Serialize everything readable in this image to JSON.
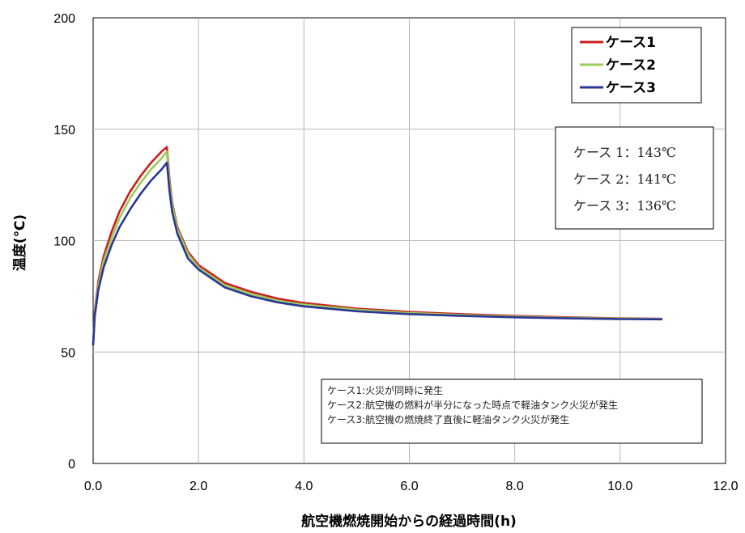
{
  "chart_data": {
    "type": "line",
    "xlabel": "航空機燃焼開始からの経過時間(h)",
    "ylabel": "温度(℃)",
    "xlim": [
      0,
      12
    ],
    "ylim": [
      0,
      200
    ],
    "x_ticks": [
      "0.0",
      "2.0",
      "4.0",
      "6.0",
      "8.0",
      "10.0",
      "12.0"
    ],
    "y_ticks": [
      "0",
      "50",
      "100",
      "150",
      "200"
    ],
    "grid": true,
    "legend_position": "top-right",
    "series": [
      {
        "name": "ケース1",
        "color": "#cc1f1f",
        "points": [
          [
            0.0,
            53
          ],
          [
            0.03,
            68
          ],
          [
            0.1,
            82
          ],
          [
            0.2,
            93
          ],
          [
            0.35,
            104
          ],
          [
            0.5,
            113
          ],
          [
            0.7,
            122
          ],
          [
            0.9,
            129
          ],
          [
            1.1,
            135
          ],
          [
            1.3,
            140
          ],
          [
            1.4,
            142
          ],
          [
            1.42,
            136
          ],
          [
            1.45,
            127
          ],
          [
            1.5,
            117
          ],
          [
            1.6,
            106
          ],
          [
            1.8,
            95
          ],
          [
            2.0,
            89
          ],
          [
            2.5,
            81
          ],
          [
            3.0,
            77
          ],
          [
            3.5,
            74
          ],
          [
            4.0,
            72
          ],
          [
            5.0,
            69.5
          ],
          [
            6.0,
            68
          ],
          [
            7.0,
            67
          ],
          [
            8.0,
            66.2
          ],
          [
            9.0,
            65.6
          ],
          [
            10.0,
            65.1
          ],
          [
            10.8,
            64.9
          ]
        ]
      },
      {
        "name": "ケース2",
        "color": "#9acd5a",
        "points": [
          [
            0.0,
            53
          ],
          [
            0.03,
            67
          ],
          [
            0.1,
            80
          ],
          [
            0.2,
            91
          ],
          [
            0.35,
            101
          ],
          [
            0.5,
            110
          ],
          [
            0.7,
            119
          ],
          [
            0.9,
            126
          ],
          [
            1.1,
            132
          ],
          [
            1.3,
            137
          ],
          [
            1.4,
            140
          ],
          [
            1.42,
            134
          ],
          [
            1.45,
            125
          ],
          [
            1.5,
            116
          ],
          [
            1.6,
            105
          ],
          [
            1.8,
            94
          ],
          [
            2.0,
            88
          ],
          [
            2.5,
            80
          ],
          [
            3.0,
            76
          ],
          [
            3.5,
            73
          ],
          [
            4.0,
            71.3
          ],
          [
            5.0,
            69
          ],
          [
            6.0,
            67.5
          ],
          [
            7.0,
            66.6
          ],
          [
            8.0,
            65.9
          ],
          [
            9.0,
            65.3
          ],
          [
            10.0,
            65
          ],
          [
            10.8,
            64.8
          ]
        ]
      },
      {
        "name": "ケース3",
        "color": "#2b3796",
        "points": [
          [
            0.0,
            53
          ],
          [
            0.03,
            66
          ],
          [
            0.1,
            78
          ],
          [
            0.2,
            88
          ],
          [
            0.35,
            98
          ],
          [
            0.5,
            106
          ],
          [
            0.7,
            114
          ],
          [
            0.9,
            121
          ],
          [
            1.1,
            127
          ],
          [
            1.3,
            132
          ],
          [
            1.4,
            135
          ],
          [
            1.42,
            130
          ],
          [
            1.45,
            122
          ],
          [
            1.5,
            113
          ],
          [
            1.6,
            103
          ],
          [
            1.8,
            92
          ],
          [
            2.0,
            87
          ],
          [
            2.5,
            79
          ],
          [
            3.0,
            75
          ],
          [
            3.5,
            72.3
          ],
          [
            4.0,
            70.5
          ],
          [
            5.0,
            68.3
          ],
          [
            6.0,
            67
          ],
          [
            7.0,
            66.2
          ],
          [
            8.0,
            65.6
          ],
          [
            9.0,
            65.1
          ],
          [
            10.0,
            64.8
          ],
          [
            10.8,
            64.7
          ]
        ]
      }
    ],
    "max_temperature_box": [
      "ケース 1：143℃",
      "ケース 2：141℃",
      "ケース 3：136℃"
    ],
    "notes": [
      "ケース1:火災が同時に発生",
      "ケース2:航空機の燃料が半分になった時点で軽油タンク火災が発生",
      "ケース3:航空機の燃焼終了直後に軽油タンク火災が発生"
    ]
  }
}
